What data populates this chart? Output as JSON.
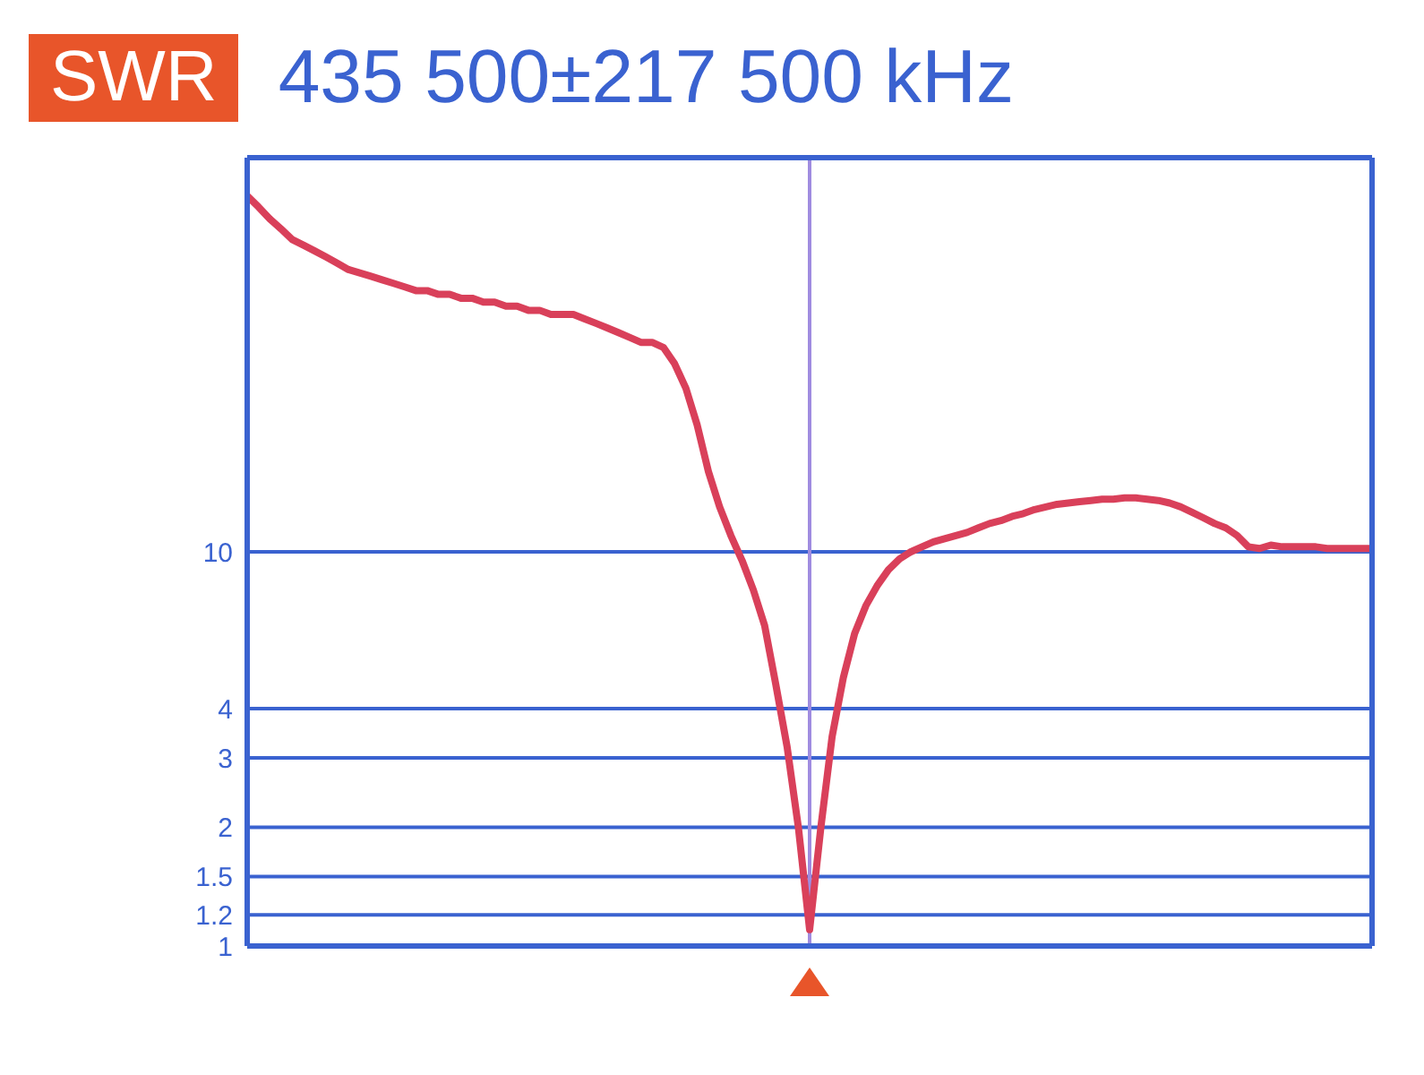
{
  "chart_data": {
    "type": "line",
    "title": "SWR",
    "subtitle": "435 500±217 500 kHz",
    "categories": [
      null,
      null,
      null,
      null,
      null,
      null,
      null,
      null,
      null,
      null,
      null,
      null,
      null,
      null,
      null,
      null,
      null,
      null,
      null,
      null,
      null,
      null,
      null,
      null,
      null,
      null,
      null,
      null,
      null,
      null,
      null,
      null,
      null,
      null,
      null,
      null,
      null,
      null,
      null,
      null,
      null,
      null,
      null,
      null,
      null,
      null,
      null,
      null,
      null,
      null,
      null,
      null,
      null,
      null,
      null,
      null,
      null,
      null,
      null,
      null,
      null,
      null,
      null,
      null,
      null,
      null,
      null,
      null,
      null,
      null,
      null,
      null,
      null,
      null,
      null,
      null,
      null,
      null,
      null,
      null,
      null,
      null,
      null,
      null,
      null,
      null,
      null,
      null,
      null,
      null,
      null,
      null,
      null,
      null,
      null,
      null,
      null,
      null,
      null,
      null,
      null
    ],
    "series": [
      {
        "color": "#d9405a",
        "values": [
          80,
          75,
          70,
          66,
          62,
          60,
          58,
          56,
          54,
          52,
          51,
          50,
          49,
          48,
          47,
          46,
          46,
          45,
          45,
          44,
          44,
          43,
          43,
          42,
          42,
          41,
          41,
          40,
          40,
          40,
          39,
          38,
          37,
          36,
          35,
          34,
          34,
          33,
          30,
          26,
          21,
          16,
          13,
          11,
          9.5,
          8,
          6.5,
          4.6,
          3.2,
          2,
          1.1,
          2,
          3.4,
          4.8,
          6.2,
          7.3,
          8.2,
          9,
          9.6,
          10,
          10.3,
          10.6,
          10.8,
          11,
          11.2,
          11.5,
          11.8,
          12,
          12.3,
          12.5,
          12.8,
          13,
          13.2,
          13.3,
          13.4,
          13.5,
          13.6,
          13.6,
          13.7,
          13.7,
          13.6,
          13.5,
          13.3,
          13,
          12.6,
          12.2,
          11.8,
          11.5,
          11,
          10.3,
          10.2,
          10.4,
          10.3,
          10.3,
          10.3,
          10.3,
          10.2,
          10.2,
          10.2,
          10.2,
          10.2
        ]
      }
    ],
    "ylim": [
      1,
      100
    ],
    "log": "y",
    "yticks": [
      1,
      1.2,
      1.5,
      2,
      3,
      4,
      10
    ],
    "tick_labels": "y",
    "grid": "y"
  }
}
